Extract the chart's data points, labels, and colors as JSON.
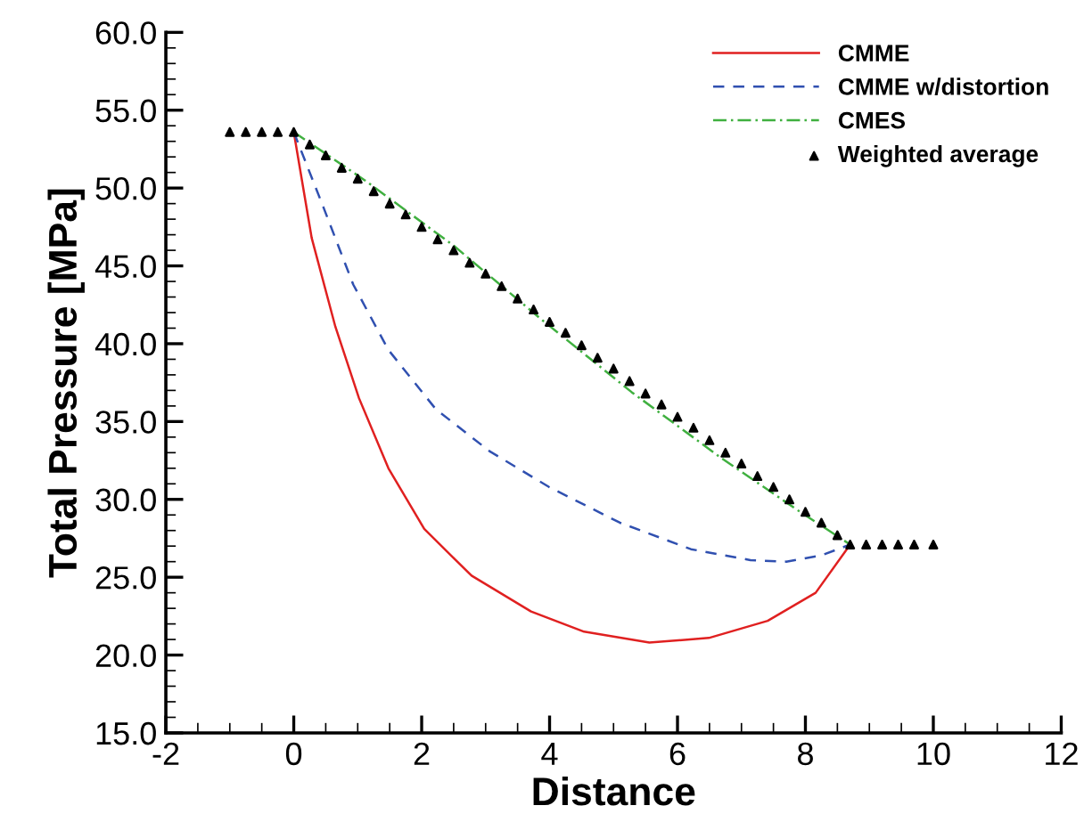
{
  "chart_data": {
    "type": "line",
    "xlabel": "Distance",
    "ylabel": "Total Pressure [MPa]",
    "xlim": [
      -2,
      12
    ],
    "xticks": [
      -2,
      0,
      2,
      4,
      6,
      8,
      10,
      12
    ],
    "ylim": [
      15,
      60
    ],
    "yticks": [
      {
        "value": 15,
        "label": "15.0"
      },
      {
        "value": 20,
        "label": "20.0"
      },
      {
        "value": 25,
        "label": "25.0"
      },
      {
        "value": 30,
        "label": "30.0"
      },
      {
        "value": 35,
        "label": "35.0"
      },
      {
        "value": 40,
        "label": "40.0"
      },
      {
        "value": 45,
        "label": "45.0"
      },
      {
        "value": 50,
        "label": "50.0"
      },
      {
        "value": 55,
        "label": "55.0"
      },
      {
        "value": 60,
        "label": "60.0"
      }
    ],
    "grid": false,
    "legend": "top right",
    "series": [
      {
        "name": "CMME",
        "color": "#e02020",
        "line_style": "solid",
        "marker": "none",
        "x": [
          0,
          0.28,
          0.65,
          1.02,
          1.48,
          2.04,
          2.78,
          3.71,
          4.54,
          5.56,
          6.49,
          7.41,
          8.16,
          8.7
        ],
        "values": [
          53.6,
          46.8,
          41.1,
          36.5,
          32.0,
          28.1,
          25.1,
          22.8,
          21.5,
          20.8,
          21.1,
          22.2,
          24.0,
          27.1
        ]
      },
      {
        "name": "CMME w/distortion",
        "color": "#3050b0",
        "line_style": "dashed",
        "marker": "none",
        "x": [
          0,
          0.47,
          0.93,
          1.48,
          2.22,
          3.06,
          3.99,
          5.1,
          6.21,
          7.14,
          7.7,
          8.25,
          8.7
        ],
        "values": [
          53.6,
          48.7,
          43.8,
          39.6,
          35.8,
          33.1,
          30.8,
          28.5,
          26.8,
          26.1,
          26.0,
          26.4,
          27.1
        ]
      },
      {
        "name": "CMES",
        "color": "#40b040",
        "line_style": "dashdot",
        "marker": "none",
        "x": [
          0,
          1.11,
          2.5,
          3.89,
          5.28,
          6.67,
          7.88,
          8.7
        ],
        "values": [
          53.6,
          50.5,
          46.3,
          41.5,
          36.9,
          32.7,
          29.3,
          27.1
        ]
      },
      {
        "name": "Weighted average",
        "color": "#000000",
        "type": "scatter",
        "marker": "triangle",
        "x": [
          -1,
          -0.75,
          -0.5,
          -0.25,
          0,
          0.25,
          0.5,
          0.75,
          1,
          1.25,
          1.5,
          1.75,
          2,
          2.25,
          2.5,
          2.75,
          3,
          3.25,
          3.5,
          3.75,
          4,
          4.25,
          4.5,
          4.75,
          5,
          5.25,
          5.5,
          5.75,
          6,
          6.25,
          6.5,
          6.75,
          7,
          7.25,
          7.5,
          7.75,
          8,
          8.25,
          8.5,
          8.7,
          8.95,
          9.2,
          9.45,
          9.7,
          10
        ],
        "values": [
          53.6,
          53.6,
          53.6,
          53.6,
          53.6,
          52.8,
          52.1,
          51.3,
          50.6,
          49.8,
          49.0,
          48.3,
          47.5,
          46.7,
          46.0,
          45.2,
          44.5,
          43.7,
          42.9,
          42.2,
          41.4,
          40.7,
          39.9,
          39.1,
          38.4,
          37.6,
          36.8,
          36.1,
          35.3,
          34.6,
          33.8,
          33.0,
          32.3,
          31.5,
          30.8,
          30.0,
          29.2,
          28.5,
          27.7,
          27.1,
          27.1,
          27.1,
          27.1,
          27.1,
          27.1
        ]
      }
    ]
  }
}
